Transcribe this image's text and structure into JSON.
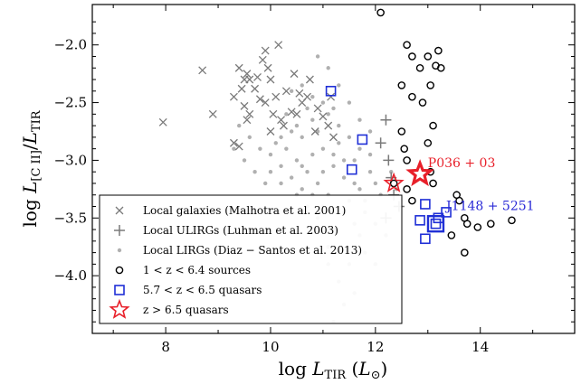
{
  "chart_data": {
    "type": "scatter",
    "xlabel": "log L_TIR (L_⊙)",
    "ylabel": "log L_[CII]/L_TIR",
    "xlim": [
      6.6,
      15.8
    ],
    "ylim": [
      -4.5,
      -1.65
    ],
    "xticks": [
      8,
      10,
      12,
      14
    ],
    "xtick_labels": [
      "8",
      "10",
      "12",
      "14"
    ],
    "yticks": [
      -2.0,
      -2.5,
      -3.0,
      -3.5,
      -4.0
    ],
    "ytick_labels": [
      "−2.0",
      "−2.5",
      "−3.0",
      "−3.5",
      "−4.0"
    ],
    "grid": false,
    "legend_position": "bottom-left",
    "colors": {
      "local_galaxies": "#7a7a7a",
      "local_ulirgs": "#7a7a7a",
      "local_lirgs": "#b0b0b0",
      "sources": "#000000",
      "quasars_low": "#1f2fd6",
      "quasars_high": "#e8202a",
      "label_p036": "#e8202a",
      "label_j1148": "#2a2ad6"
    },
    "series": [
      {
        "name": "Local galaxies (Malhotra et al. 2001)",
        "marker": "x",
        "points": [
          [
            7.95,
            -2.67
          ],
          [
            8.7,
            -2.22
          ],
          [
            8.9,
            -2.6
          ],
          [
            9.3,
            -2.45
          ],
          [
            9.4,
            -2.2
          ],
          [
            9.45,
            -2.38
          ],
          [
            9.5,
            -2.3
          ],
          [
            9.5,
            -2.53
          ],
          [
            9.55,
            -2.25
          ],
          [
            9.55,
            -2.65
          ],
          [
            9.6,
            -2.3
          ],
          [
            9.6,
            -2.6
          ],
          [
            9.7,
            -2.38
          ],
          [
            9.75,
            -2.28
          ],
          [
            9.8,
            -2.47
          ],
          [
            9.85,
            -2.13
          ],
          [
            9.9,
            -2.05
          ],
          [
            9.9,
            -2.5
          ],
          [
            9.95,
            -2.2
          ],
          [
            10.0,
            -2.3
          ],
          [
            10.05,
            -2.6
          ],
          [
            10.1,
            -2.45
          ],
          [
            10.15,
            -2.0
          ],
          [
            10.2,
            -2.65
          ],
          [
            10.25,
            -2.7
          ],
          [
            10.3,
            -2.4
          ],
          [
            10.4,
            -2.58
          ],
          [
            10.45,
            -2.25
          ],
          [
            10.5,
            -2.6
          ],
          [
            10.55,
            -2.42
          ],
          [
            10.6,
            -2.5
          ],
          [
            10.7,
            -2.45
          ],
          [
            10.75,
            -2.3
          ],
          [
            10.85,
            -2.75
          ],
          [
            10.9,
            -2.55
          ],
          [
            11.0,
            -2.62
          ],
          [
            11.1,
            -2.7
          ],
          [
            11.15,
            -2.45
          ],
          [
            11.2,
            -2.8
          ],
          [
            9.3,
            -2.85
          ],
          [
            9.4,
            -2.88
          ],
          [
            10.0,
            -2.75
          ]
        ]
      },
      {
        "name": "Local ULIRGs (Luhman et al. 2003)",
        "marker": "plus",
        "points": [
          [
            12.1,
            -2.85
          ],
          [
            12.2,
            -2.65
          ],
          [
            12.25,
            -3.0
          ],
          [
            12.3,
            -3.15
          ],
          [
            12.35,
            -3.3
          ],
          [
            12.45,
            -3.4
          ],
          [
            12.2,
            -3.5
          ]
        ]
      },
      {
        "name": "Local LIRGs (Diaz − Santos et al. 2013)",
        "marker": "dot",
        "points": [
          [
            9.3,
            -2.9
          ],
          [
            9.5,
            -3.0
          ],
          [
            9.7,
            -3.1
          ],
          [
            9.9,
            -3.2
          ],
          [
            10.0,
            -2.95
          ],
          [
            10.1,
            -2.85
          ],
          [
            10.2,
            -3.05
          ],
          [
            10.3,
            -2.9
          ],
          [
            10.4,
            -3.15
          ],
          [
            10.5,
            -3.0
          ],
          [
            10.6,
            -2.8
          ],
          [
            10.7,
            -3.1
          ],
          [
            10.8,
            -2.95
          ],
          [
            10.9,
            -3.2
          ],
          [
            11.0,
            -2.9
          ],
          [
            11.1,
            -3.3
          ],
          [
            11.2,
            -3.05
          ],
          [
            11.3,
            -2.85
          ],
          [
            11.4,
            -3.15
          ],
          [
            11.5,
            -3.35
          ],
          [
            11.6,
            -3.0
          ],
          [
            11.7,
            -3.25
          ],
          [
            11.8,
            -3.45
          ],
          [
            11.9,
            -3.1
          ],
          [
            12.0,
            -3.55
          ],
          [
            12.1,
            -3.3
          ],
          [
            10.3,
            -2.6
          ],
          [
            10.5,
            -2.7
          ],
          [
            10.7,
            -2.55
          ],
          [
            10.9,
            -2.75
          ],
          [
            11.1,
            -2.6
          ],
          [
            11.3,
            -2.7
          ],
          [
            11.5,
            -2.8
          ],
          [
            11.7,
            -2.9
          ],
          [
            11.9,
            -2.75
          ],
          [
            10.4,
            -2.4
          ],
          [
            10.6,
            -2.35
          ],
          [
            10.8,
            -2.45
          ],
          [
            11.0,
            -2.5
          ],
          [
            11.2,
            -2.55
          ],
          [
            10.9,
            -2.1
          ],
          [
            11.1,
            -2.2
          ],
          [
            11.3,
            -2.35
          ],
          [
            11.5,
            -2.5
          ],
          [
            11.7,
            -2.65
          ],
          [
            11.9,
            -2.95
          ],
          [
            12.2,
            -3.65
          ],
          [
            11.6,
            -3.55
          ],
          [
            11.4,
            -3.45
          ],
          [
            11.2,
            -3.6
          ],
          [
            11.0,
            -3.4
          ],
          [
            10.8,
            -3.3
          ],
          [
            10.6,
            -3.25
          ],
          [
            11.8,
            -3.8
          ],
          [
            11.5,
            -3.9
          ],
          [
            11.3,
            -4.05
          ],
          [
            11.6,
            -4.15
          ],
          [
            11.4,
            -4.25
          ],
          [
            11.2,
            -4.4
          ],
          [
            11.7,
            -3.65
          ],
          [
            12.0,
            -3.9
          ],
          [
            10.2,
            -3.2
          ],
          [
            10.0,
            -3.1
          ],
          [
            9.8,
            -2.9
          ],
          [
            9.6,
            -2.8
          ],
          [
            9.4,
            -2.7
          ],
          [
            10.9,
            -3.5
          ],
          [
            11.1,
            -3.75
          ],
          [
            12.3,
            -3.1
          ],
          [
            12.4,
            -3.25
          ],
          [
            12.0,
            -3.2
          ],
          [
            11.8,
            -3.35
          ],
          [
            11.6,
            -3.2
          ],
          [
            11.4,
            -3.0
          ],
          [
            11.2,
            -2.95
          ],
          [
            11.0,
            -3.1
          ],
          [
            10.8,
            -2.65
          ],
          [
            10.6,
            -3.05
          ],
          [
            10.4,
            -2.75
          ],
          [
            10.2,
            -2.8
          ],
          [
            10.5,
            -3.3
          ],
          [
            10.7,
            -3.4
          ],
          [
            10.9,
            -3.6
          ],
          [
            11.1,
            -3.9
          ],
          [
            11.3,
            -3.8
          ]
        ]
      },
      {
        "name": "1 < z < 6.4 sources",
        "marker": "circle",
        "points": [
          [
            12.1,
            -1.72
          ],
          [
            12.6,
            -2.0
          ],
          [
            12.7,
            -2.1
          ],
          [
            12.85,
            -2.2
          ],
          [
            13.0,
            -2.1
          ],
          [
            13.05,
            -2.35
          ],
          [
            13.15,
            -2.18
          ],
          [
            13.2,
            -2.05
          ],
          [
            13.25,
            -2.2
          ],
          [
            12.5,
            -2.35
          ],
          [
            12.7,
            -2.45
          ],
          [
            12.9,
            -2.5
          ],
          [
            12.5,
            -2.75
          ],
          [
            12.55,
            -2.9
          ],
          [
            13.0,
            -2.85
          ],
          [
            13.1,
            -2.7
          ],
          [
            12.6,
            -3.0
          ],
          [
            13.05,
            -3.1
          ],
          [
            13.1,
            -3.2
          ],
          [
            12.6,
            -3.25
          ],
          [
            12.7,
            -3.35
          ],
          [
            13.55,
            -3.3
          ],
          [
            13.6,
            -3.35
          ],
          [
            13.7,
            -3.5
          ],
          [
            13.75,
            -3.55
          ],
          [
            13.95,
            -3.58
          ],
          [
            14.2,
            -3.55
          ],
          [
            14.6,
            -3.52
          ],
          [
            13.45,
            -3.65
          ],
          [
            13.7,
            -3.8
          ],
          [
            12.35,
            -3.2
          ]
        ]
      },
      {
        "name": "5.7 < z < 6.5 quasars",
        "marker": "square",
        "points": [
          [
            11.15,
            -2.4
          ],
          [
            11.75,
            -2.82
          ],
          [
            11.55,
            -3.08
          ],
          [
            12.95,
            -3.38
          ],
          [
            12.85,
            -3.52
          ],
          [
            13.2,
            -3.5
          ],
          [
            12.95,
            -3.68
          ],
          [
            13.35,
            -3.45
          ],
          [
            13.15,
            -3.55
          ]
        ]
      },
      {
        "name": "z > 6.5 quasars",
        "marker": "star",
        "points": [
          [
            12.85,
            -3.12
          ],
          [
            12.35,
            -3.2
          ]
        ]
      }
    ],
    "annotations": [
      {
        "text": "P036 + 03",
        "x": 13.0,
        "y": -3.06,
        "color": "#e8202a"
      },
      {
        "text": "J1148 + 5251",
        "x": 13.35,
        "y": -3.43,
        "color": "#2a2ad6"
      }
    ]
  }
}
